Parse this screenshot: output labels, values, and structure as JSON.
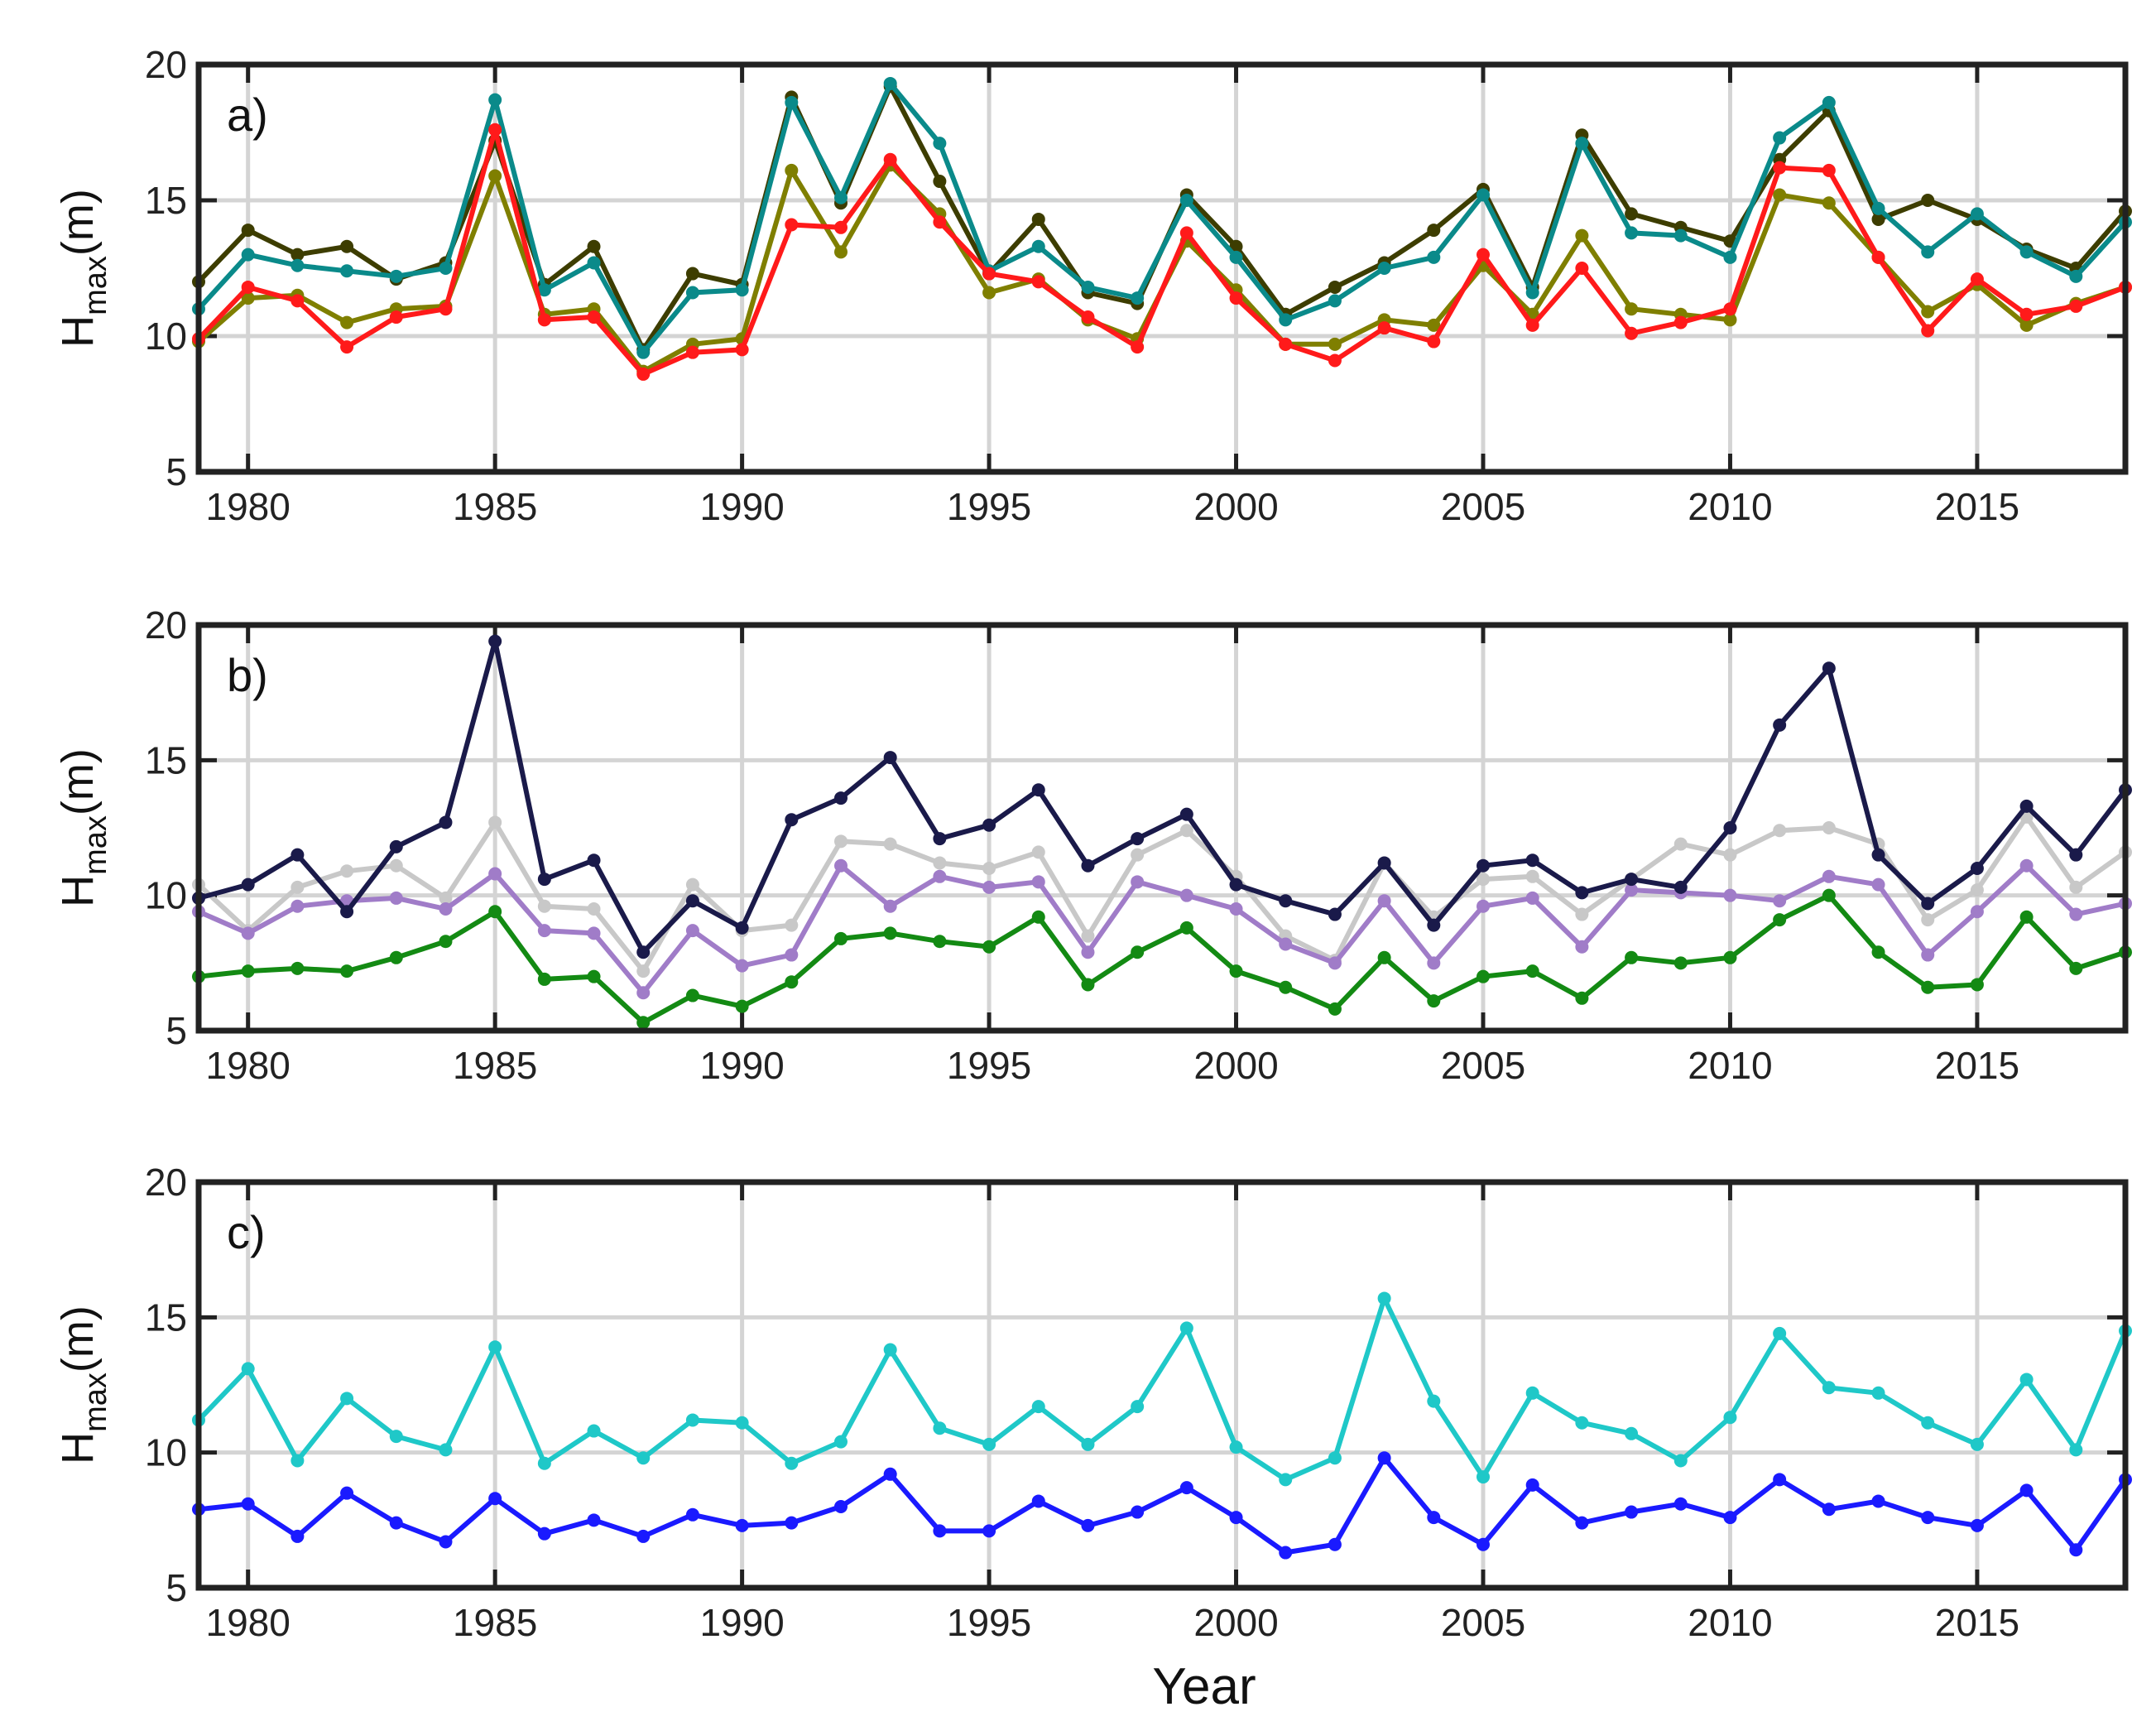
{
  "chart_data": [
    {
      "type": "line",
      "panel_label": "a)",
      "ylabel_main": "H",
      "ylabel_sub": "max",
      "ylabel_unit": "(m)",
      "xlabel": "",
      "xlim": [
        1979,
        2018
      ],
      "ylim": [
        5,
        20
      ],
      "xticks": [
        1980,
        1985,
        1990,
        1995,
        2000,
        2005,
        2010,
        2015
      ],
      "yticks": [
        5,
        10,
        15,
        20
      ],
      "grid": true,
      "x": [
        1979,
        1980,
        1981,
        1982,
        1983,
        1984,
        1985,
        1986,
        1987,
        1988,
        1989,
        1990,
        1991,
        1992,
        1993,
        1994,
        1995,
        1996,
        1997,
        1998,
        1999,
        2000,
        2001,
        2002,
        2003,
        2004,
        2005,
        2006,
        2007,
        2008,
        2009,
        2010,
        2011,
        2012,
        2013,
        2014,
        2015,
        2016,
        2017,
        2018
      ],
      "series": [
        {
          "color": "#3d3d00",
          "values": [
            12.0,
            13.9,
            13.0,
            13.3,
            12.1,
            12.7,
            17.2,
            11.9,
            13.3,
            9.5,
            12.3,
            11.9,
            18.8,
            14.9,
            19.2,
            15.7,
            12.3,
            14.3,
            11.6,
            11.2,
            15.2,
            13.3,
            10.8,
            11.8,
            12.7,
            13.9,
            15.4,
            11.8,
            17.4,
            14.5,
            14.0,
            13.5,
            16.5,
            18.3,
            14.3,
            15.0,
            14.3,
            13.2,
            12.5,
            14.6
          ]
        },
        {
          "color": "#0a8a8a",
          "values": [
            11.0,
            13.0,
            12.6,
            12.4,
            12.2,
            12.5,
            18.7,
            11.7,
            12.7,
            9.4,
            11.6,
            11.7,
            18.6,
            15.1,
            19.3,
            17.1,
            12.4,
            13.3,
            11.8,
            11.4,
            15.0,
            12.9,
            10.6,
            11.3,
            12.5,
            12.9,
            15.2,
            11.6,
            17.1,
            13.8,
            13.7,
            12.9,
            17.3,
            18.6,
            14.7,
            13.1,
            14.5,
            13.1,
            12.2,
            14.2
          ]
        },
        {
          "color": "#7f7f00",
          "values": [
            9.8,
            11.4,
            11.5,
            10.5,
            11.0,
            11.1,
            15.9,
            10.8,
            11.0,
            8.7,
            9.7,
            9.9,
            16.1,
            13.1,
            16.3,
            14.5,
            11.6,
            12.1,
            10.6,
            9.9,
            13.5,
            11.7,
            9.7,
            9.7,
            10.6,
            10.4,
            12.6,
            10.8,
            13.7,
            11.0,
            10.8,
            10.6,
            15.2,
            14.9,
            12.9,
            10.9,
            11.9,
            10.4,
            11.2,
            11.8
          ]
        },
        {
          "color": "#ff1a1a",
          "values": [
            9.9,
            11.8,
            11.3,
            9.6,
            10.7,
            11.0,
            17.6,
            10.6,
            10.7,
            8.6,
            9.4,
            9.5,
            14.1,
            14.0,
            16.5,
            14.2,
            12.3,
            12.0,
            10.7,
            9.6,
            13.8,
            11.4,
            9.7,
            9.1,
            10.3,
            9.8,
            13.0,
            10.4,
            12.5,
            10.1,
            10.5,
            11.0,
            16.2,
            16.1,
            12.9,
            10.2,
            12.1,
            10.8,
            11.1,
            11.8
          ]
        }
      ]
    },
    {
      "type": "line",
      "panel_label": "b)",
      "ylabel_main": "H",
      "ylabel_sub": "max",
      "ylabel_unit": "(m)",
      "xlabel": "",
      "xlim": [
        1979,
        2018
      ],
      "ylim": [
        5,
        20
      ],
      "xticks": [
        1980,
        1985,
        1990,
        1995,
        2000,
        2005,
        2010,
        2015
      ],
      "yticks": [
        5,
        10,
        15,
        20
      ],
      "grid": true,
      "x": [
        1979,
        1980,
        1981,
        1982,
        1983,
        1984,
        1985,
        1986,
        1987,
        1988,
        1989,
        1990,
        1991,
        1992,
        1993,
        1994,
        1995,
        1996,
        1997,
        1998,
        1999,
        2000,
        2001,
        2002,
        2003,
        2004,
        2005,
        2006,
        2007,
        2008,
        2009,
        2010,
        2011,
        2012,
        2013,
        2014,
        2015,
        2016,
        2017,
        2018
      ],
      "series": [
        {
          "color": "#c8c8c8",
          "values": [
            10.4,
            8.7,
            10.3,
            10.9,
            11.1,
            9.9,
            12.7,
            9.6,
            9.5,
            7.2,
            10.4,
            8.7,
            8.9,
            12.0,
            11.9,
            11.2,
            11.0,
            11.6,
            8.5,
            11.5,
            12.4,
            10.7,
            8.5,
            7.6,
            11.2,
            9.2,
            10.6,
            10.7,
            9.3,
            10.6,
            11.9,
            11.5,
            12.4,
            12.5,
            11.9,
            9.1,
            10.2,
            12.9,
            10.3,
            11.6
          ]
        },
        {
          "color": "#a07cc8",
          "values": [
            9.4,
            8.6,
            9.6,
            9.8,
            9.9,
            9.5,
            10.8,
            8.7,
            8.6,
            6.4,
            8.7,
            7.4,
            7.8,
            11.1,
            9.6,
            10.7,
            10.3,
            10.5,
            7.9,
            10.5,
            10.0,
            9.5,
            8.2,
            7.5,
            9.8,
            7.5,
            9.6,
            9.9,
            8.1,
            10.2,
            10.1,
            10.0,
            9.8,
            10.7,
            10.4,
            7.8,
            9.4,
            11.1,
            9.3,
            9.7
          ]
        },
        {
          "color": "#1a1a4a",
          "values": [
            9.9,
            10.4,
            11.5,
            9.4,
            11.8,
            12.7,
            19.4,
            10.6,
            11.3,
            7.9,
            9.8,
            8.8,
            12.8,
            13.6,
            15.1,
            12.1,
            12.6,
            13.9,
            11.1,
            12.1,
            13.0,
            10.4,
            9.8,
            9.3,
            11.2,
            8.9,
            11.1,
            11.3,
            10.1,
            10.6,
            10.3,
            12.5,
            16.3,
            18.4,
            11.5,
            9.7,
            11.0,
            13.3,
            11.5,
            13.9
          ]
        },
        {
          "color": "#138a13",
          "values": [
            7.0,
            7.2,
            7.3,
            7.2,
            7.7,
            8.3,
            9.4,
            6.9,
            7.0,
            5.3,
            6.3,
            5.9,
            6.8,
            8.4,
            8.6,
            8.3,
            8.1,
            9.2,
            6.7,
            7.9,
            8.8,
            7.2,
            6.6,
            5.8,
            7.7,
            6.1,
            7.0,
            7.2,
            6.2,
            7.7,
            7.5,
            7.7,
            9.1,
            10.0,
            7.9,
            6.6,
            6.7,
            9.2,
            7.3,
            7.9
          ]
        }
      ]
    },
    {
      "type": "line",
      "panel_label": "c)",
      "ylabel_main": "H",
      "ylabel_sub": "max",
      "ylabel_unit": "(m)",
      "xlabel": "Year",
      "xlim": [
        1979,
        2018
      ],
      "ylim": [
        5,
        20
      ],
      "xticks": [
        1980,
        1985,
        1990,
        1995,
        2000,
        2005,
        2010,
        2015
      ],
      "yticks": [
        5,
        10,
        15,
        20
      ],
      "grid": true,
      "x": [
        1979,
        1980,
        1981,
        1982,
        1983,
        1984,
        1985,
        1986,
        1987,
        1988,
        1989,
        1990,
        1991,
        1992,
        1993,
        1994,
        1995,
        1996,
        1997,
        1998,
        1999,
        2000,
        2001,
        2002,
        2003,
        2004,
        2005,
        2006,
        2007,
        2008,
        2009,
        2010,
        2011,
        2012,
        2013,
        2014,
        2015,
        2016,
        2017,
        2018
      ],
      "series": [
        {
          "color": "#1fc8c8",
          "values": [
            11.2,
            13.1,
            9.7,
            12.0,
            10.6,
            10.1,
            13.9,
            9.6,
            10.8,
            9.8,
            11.2,
            11.1,
            9.6,
            10.4,
            13.8,
            10.9,
            10.3,
            11.7,
            10.3,
            11.7,
            14.6,
            10.2,
            9.0,
            9.8,
            15.7,
            11.9,
            9.1,
            12.2,
            11.1,
            10.7,
            9.7,
            11.3,
            14.4,
            12.4,
            12.2,
            11.1,
            10.3,
            12.7,
            10.1,
            14.5
          ]
        },
        {
          "color": "#1a1aff",
          "values": [
            7.9,
            8.1,
            6.9,
            8.5,
            7.4,
            6.7,
            8.3,
            7.0,
            7.5,
            6.9,
            7.7,
            7.3,
            7.4,
            8.0,
            9.2,
            7.1,
            7.1,
            8.2,
            7.3,
            7.8,
            8.7,
            7.6,
            6.3,
            6.6,
            9.8,
            7.6,
            6.6,
            8.8,
            7.4,
            7.8,
            8.1,
            7.6,
            9.0,
            7.9,
            8.2,
            7.6,
            7.3,
            8.6,
            6.4,
            9.0
          ]
        }
      ]
    }
  ]
}
